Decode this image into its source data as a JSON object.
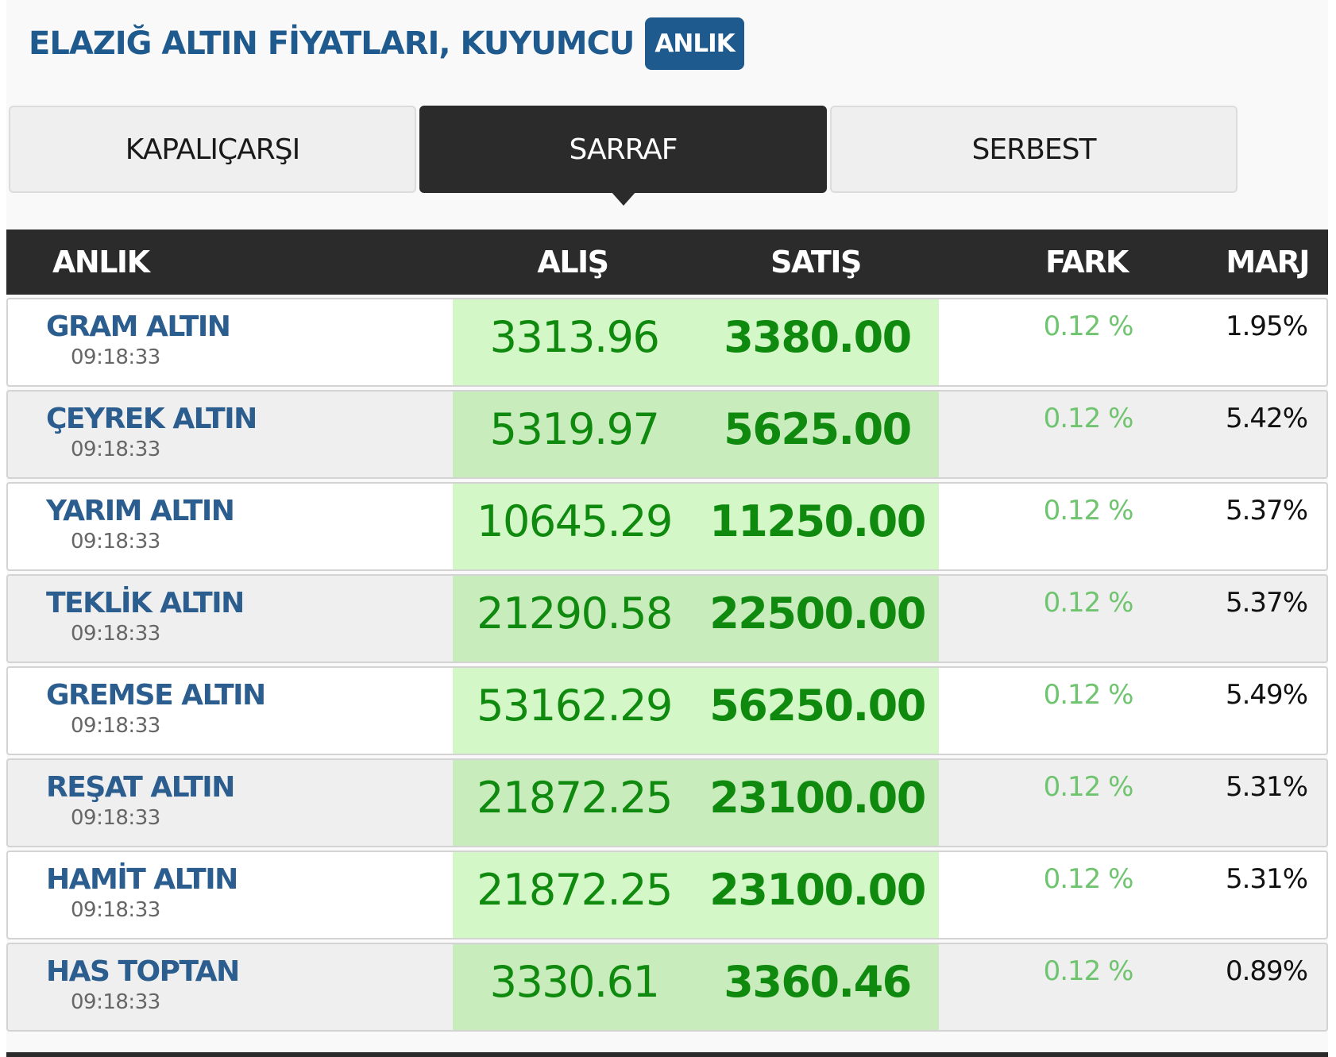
{
  "header": {
    "title": "ELAZIĞ ALTIN FİYATLARI, KUYUMCU",
    "badge": "ANLIK"
  },
  "tabs": [
    {
      "label": "KAPALIÇARŞI",
      "active": false
    },
    {
      "label": "SARRAF",
      "active": true
    },
    {
      "label": "SERBEST",
      "active": false
    }
  ],
  "table": {
    "columns": {
      "name": "ANLIK",
      "buy": "ALIŞ",
      "sell": "SATIŞ",
      "diff": "FARK",
      "margin": "MARJ"
    },
    "rows": [
      {
        "name": "GRAM ALTIN",
        "time": "09:18:33",
        "buy": "3313.96",
        "sell": "3380.00",
        "diff": "0.12 %",
        "margin": "1.95%"
      },
      {
        "name": "ÇEYREK ALTIN",
        "time": "09:18:33",
        "buy": "5319.97",
        "sell": "5625.00",
        "diff": "0.12 %",
        "margin": "5.42%"
      },
      {
        "name": "YARIM ALTIN",
        "time": "09:18:33",
        "buy": "10645.29",
        "sell": "11250.00",
        "diff": "0.12 %",
        "margin": "5.37%"
      },
      {
        "name": "TEKLİK ALTIN",
        "time": "09:18:33",
        "buy": "21290.58",
        "sell": "22500.00",
        "diff": "0.12 %",
        "margin": "5.37%"
      },
      {
        "name": "GREMSE ALTIN",
        "time": "09:18:33",
        "buy": "53162.29",
        "sell": "56250.00",
        "diff": "0.12 %",
        "margin": "5.49%"
      },
      {
        "name": "REŞAT ALTIN",
        "time": "09:18:33",
        "buy": "21872.25",
        "sell": "23100.00",
        "diff": "0.12 %",
        "margin": "5.31%"
      },
      {
        "name": "HAMİT ALTIN",
        "time": "09:18:33",
        "buy": "21872.25",
        "sell": "23100.00",
        "diff": "0.12 %",
        "margin": "5.31%"
      },
      {
        "name": "HAS TOPTAN",
        "time": "09:18:33",
        "buy": "3330.61",
        "sell": "3360.46",
        "diff": "0.12 %",
        "margin": "0.89%"
      }
    ]
  },
  "colors": {
    "title": "#1f5a8e",
    "header_bg": "#2b2b2b",
    "price_green": "#0f8a0f",
    "diff_green": "#6fc46f",
    "price_highlight": "#d3f7c6"
  }
}
